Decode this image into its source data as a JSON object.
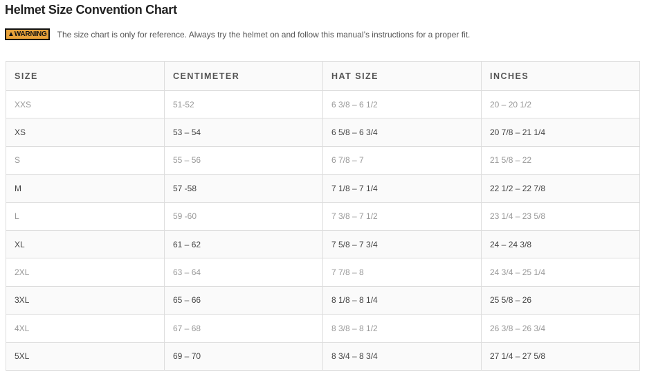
{
  "title": "Helmet Size Convention Chart",
  "warning": {
    "badge": "WARNING",
    "text": "The size chart is only for reference. Always try the helmet on and follow this manual’s instructions for a proper fit.",
    "badge_color": "#e8a23a"
  },
  "table": {
    "headers": [
      "SIZE",
      "CENTIMETER",
      "HAT SIZE",
      "INCHES"
    ],
    "rows": [
      [
        "XXS",
        "51-52",
        "6 3/8 – 6 1/2",
        "20 – 20 1/2"
      ],
      [
        "XS",
        "53 – 54",
        "6 5/8 – 6 3/4",
        "20 7/8 – 21 1/4"
      ],
      [
        "S",
        "55 – 56",
        "6 7/8 – 7",
        "21 5/8 – 22"
      ],
      [
        "M",
        "57 -58",
        "7 1/8 – 7 1/4",
        "22 1/2 – 22 7/8"
      ],
      [
        "L",
        "59 -60",
        "7 3/8 – 7 1/2",
        "23 1/4 – 23 5/8"
      ],
      [
        "XL",
        "61 – 62",
        "7 5/8 – 7 3/4",
        "24 – 24 3/8"
      ],
      [
        "2XL",
        "63 – 64",
        "7 7/8 – 8",
        "24 3/4 – 25 1/4"
      ],
      [
        "3XL",
        "65 – 66",
        "8 1/8 – 8 1/4",
        "25 5/8 – 26"
      ],
      [
        "4XL",
        "67 – 68",
        "8 3/8 – 8 1/2",
        "26 3/8 – 26 3/4"
      ],
      [
        "5XL",
        "69 – 70",
        "8 3/4 – 8 3/4",
        "27 1/4 – 27 5/8"
      ]
    ]
  }
}
